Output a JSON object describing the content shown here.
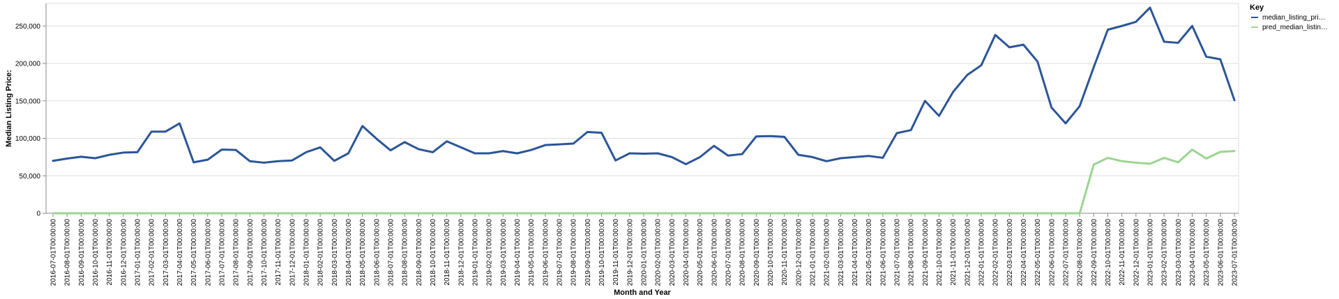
{
  "chart_data": {
    "type": "line",
    "xlabel": "Month and Year",
    "ylabel": "Median Listing Price:",
    "ylim": [
      0,
      280000
    ],
    "yticks": [
      0,
      50000,
      100000,
      150000,
      200000,
      250000
    ],
    "ytick_labels": [
      "0",
      "50,000",
      "100,000",
      "150,000",
      "200,000",
      "250,000"
    ],
    "grid": true,
    "legend": {
      "title": "Key",
      "position": "top-right",
      "entries": [
        "median_listing_pri…",
        "pred_median_listin…"
      ]
    },
    "x": [
      "2016-07-01T00:00:00",
      "2016-08-01T00:00:00",
      "2016-09-01T00:00:00",
      "2016-10-01T00:00:00",
      "2016-11-01T00:00:00",
      "2016-12-01T00:00:00",
      "2017-01-01T00:00:00",
      "2017-02-01T00:00:00",
      "2017-03-01T00:00:00",
      "2017-04-01T00:00:00",
      "2017-05-01T00:00:00",
      "2017-06-01T00:00:00",
      "2017-07-01T00:00:00",
      "2017-08-01T00:00:00",
      "2017-09-01T00:00:00",
      "2017-10-01T00:00:00",
      "2017-11-01T00:00:00",
      "2017-12-01T00:00:00",
      "2018-01-01T00:00:00",
      "2018-02-01T00:00:00",
      "2018-03-01T00:00:00",
      "2018-04-01T00:00:00",
      "2018-05-01T00:00:00",
      "2018-06-01T00:00:00",
      "2018-07-01T00:00:00",
      "2018-08-01T00:00:00",
      "2018-09-01T00:00:00",
      "2018-10-01T00:00:00",
      "2018-11-01T00:00:00",
      "2018-12-01T00:00:00",
      "2019-01-01T00:00:00",
      "2019-02-01T00:00:00",
      "2019-03-01T00:00:00",
      "2019-04-01T00:00:00",
      "2019-05-01T00:00:00",
      "2019-06-01T00:00:00",
      "2019-07-01T00:00:00",
      "2019-08-01T00:00:00",
      "2019-09-01T00:00:00",
      "2019-10-01T00:00:00",
      "2019-11-01T00:00:00",
      "2019-12-01T00:00:00",
      "2020-01-01T00:00:00",
      "2020-02-01T00:00:00",
      "2020-03-01T00:00:00",
      "2020-04-01T00:00:00",
      "2020-05-01T00:00:00",
      "2020-06-01T00:00:00",
      "2020-07-01T00:00:00",
      "2020-08-01T00:00:00",
      "2020-09-01T00:00:00",
      "2020-10-01T00:00:00",
      "2020-11-01T00:00:00",
      "2020-12-01T00:00:00",
      "2021-01-01T00:00:00",
      "2021-02-01T00:00:00",
      "2021-03-01T00:00:00",
      "2021-04-01T00:00:00",
      "2021-05-01T00:00:00",
      "2021-06-01T00:00:00",
      "2021-07-01T00:00:00",
      "2021-08-01T00:00:00",
      "2021-09-01T00:00:00",
      "2021-10-01T00:00:00",
      "2021-11-01T00:00:00",
      "2021-12-01T00:00:00",
      "2022-01-01T00:00:00",
      "2022-02-01T00:00:00",
      "2022-03-01T00:00:00",
      "2022-04-01T00:00:00",
      "2022-05-01T00:00:00",
      "2022-06-01T00:00:00",
      "2022-07-01T00:00:00",
      "2022-08-01T00:00:00",
      "2022-09-01T00:00:00",
      "2022-10-01T00:00:00",
      "2022-11-01T00:00:00",
      "2022-12-01T00:00:00",
      "2023-01-01T00:00:00",
      "2023-02-01T00:00:00",
      "2023-03-01T00:00:00",
      "2023-04-01T00:00:00",
      "2023-05-01T00:00:00",
      "2023-06-01T00:00:00",
      "2023-07-01T00:00:00"
    ],
    "series": [
      {
        "name": "median_listing_pri…",
        "color": "#2b5597",
        "values": [
          70000,
          73000,
          75500,
          73500,
          78000,
          81000,
          81500,
          109000,
          109000,
          120000,
          68000,
          71500,
          85000,
          84500,
          69500,
          67500,
          69500,
          70500,
          81500,
          88000,
          70000,
          80000,
          116500,
          99500,
          84000,
          95000,
          85500,
          81500,
          96000,
          88000,
          80000,
          80000,
          83000,
          80000,
          84500,
          91000,
          92000,
          93000,
          108500,
          107500,
          70500,
          80000,
          79500,
          80000,
          75000,
          65500,
          75000,
          90000,
          77000,
          79000,
          102500,
          103000,
          102000,
          78000,
          75000,
          69500,
          73500,
          75000,
          76500,
          74000,
          107000,
          111000,
          150000,
          130000,
          162000,
          184500,
          197500,
          238000,
          221500,
          225000,
          202500,
          141000,
          120000,
          143000,
          195000,
          245000,
          250000,
          255500,
          274500,
          229000,
          227500,
          250000,
          209000,
          205500,
          151000
        ]
      },
      {
        "name": "pred_median_listin…",
        "color": "#9ad58f",
        "values": [
          0,
          0,
          0,
          0,
          0,
          0,
          0,
          0,
          0,
          0,
          0,
          0,
          0,
          0,
          0,
          0,
          0,
          0,
          0,
          0,
          0,
          0,
          0,
          0,
          0,
          0,
          0,
          0,
          0,
          0,
          0,
          0,
          0,
          0,
          0,
          0,
          0,
          0,
          0,
          0,
          0,
          0,
          0,
          0,
          0,
          0,
          0,
          0,
          0,
          0,
          0,
          0,
          0,
          0,
          0,
          0,
          0,
          0,
          0,
          0,
          0,
          0,
          0,
          0,
          0,
          0,
          0,
          0,
          0,
          0,
          0,
          0,
          0,
          0,
          65000,
          74000,
          69500,
          67500,
          66000,
          74000,
          68000,
          85000,
          73000,
          82000,
          83000
        ]
      }
    ]
  }
}
